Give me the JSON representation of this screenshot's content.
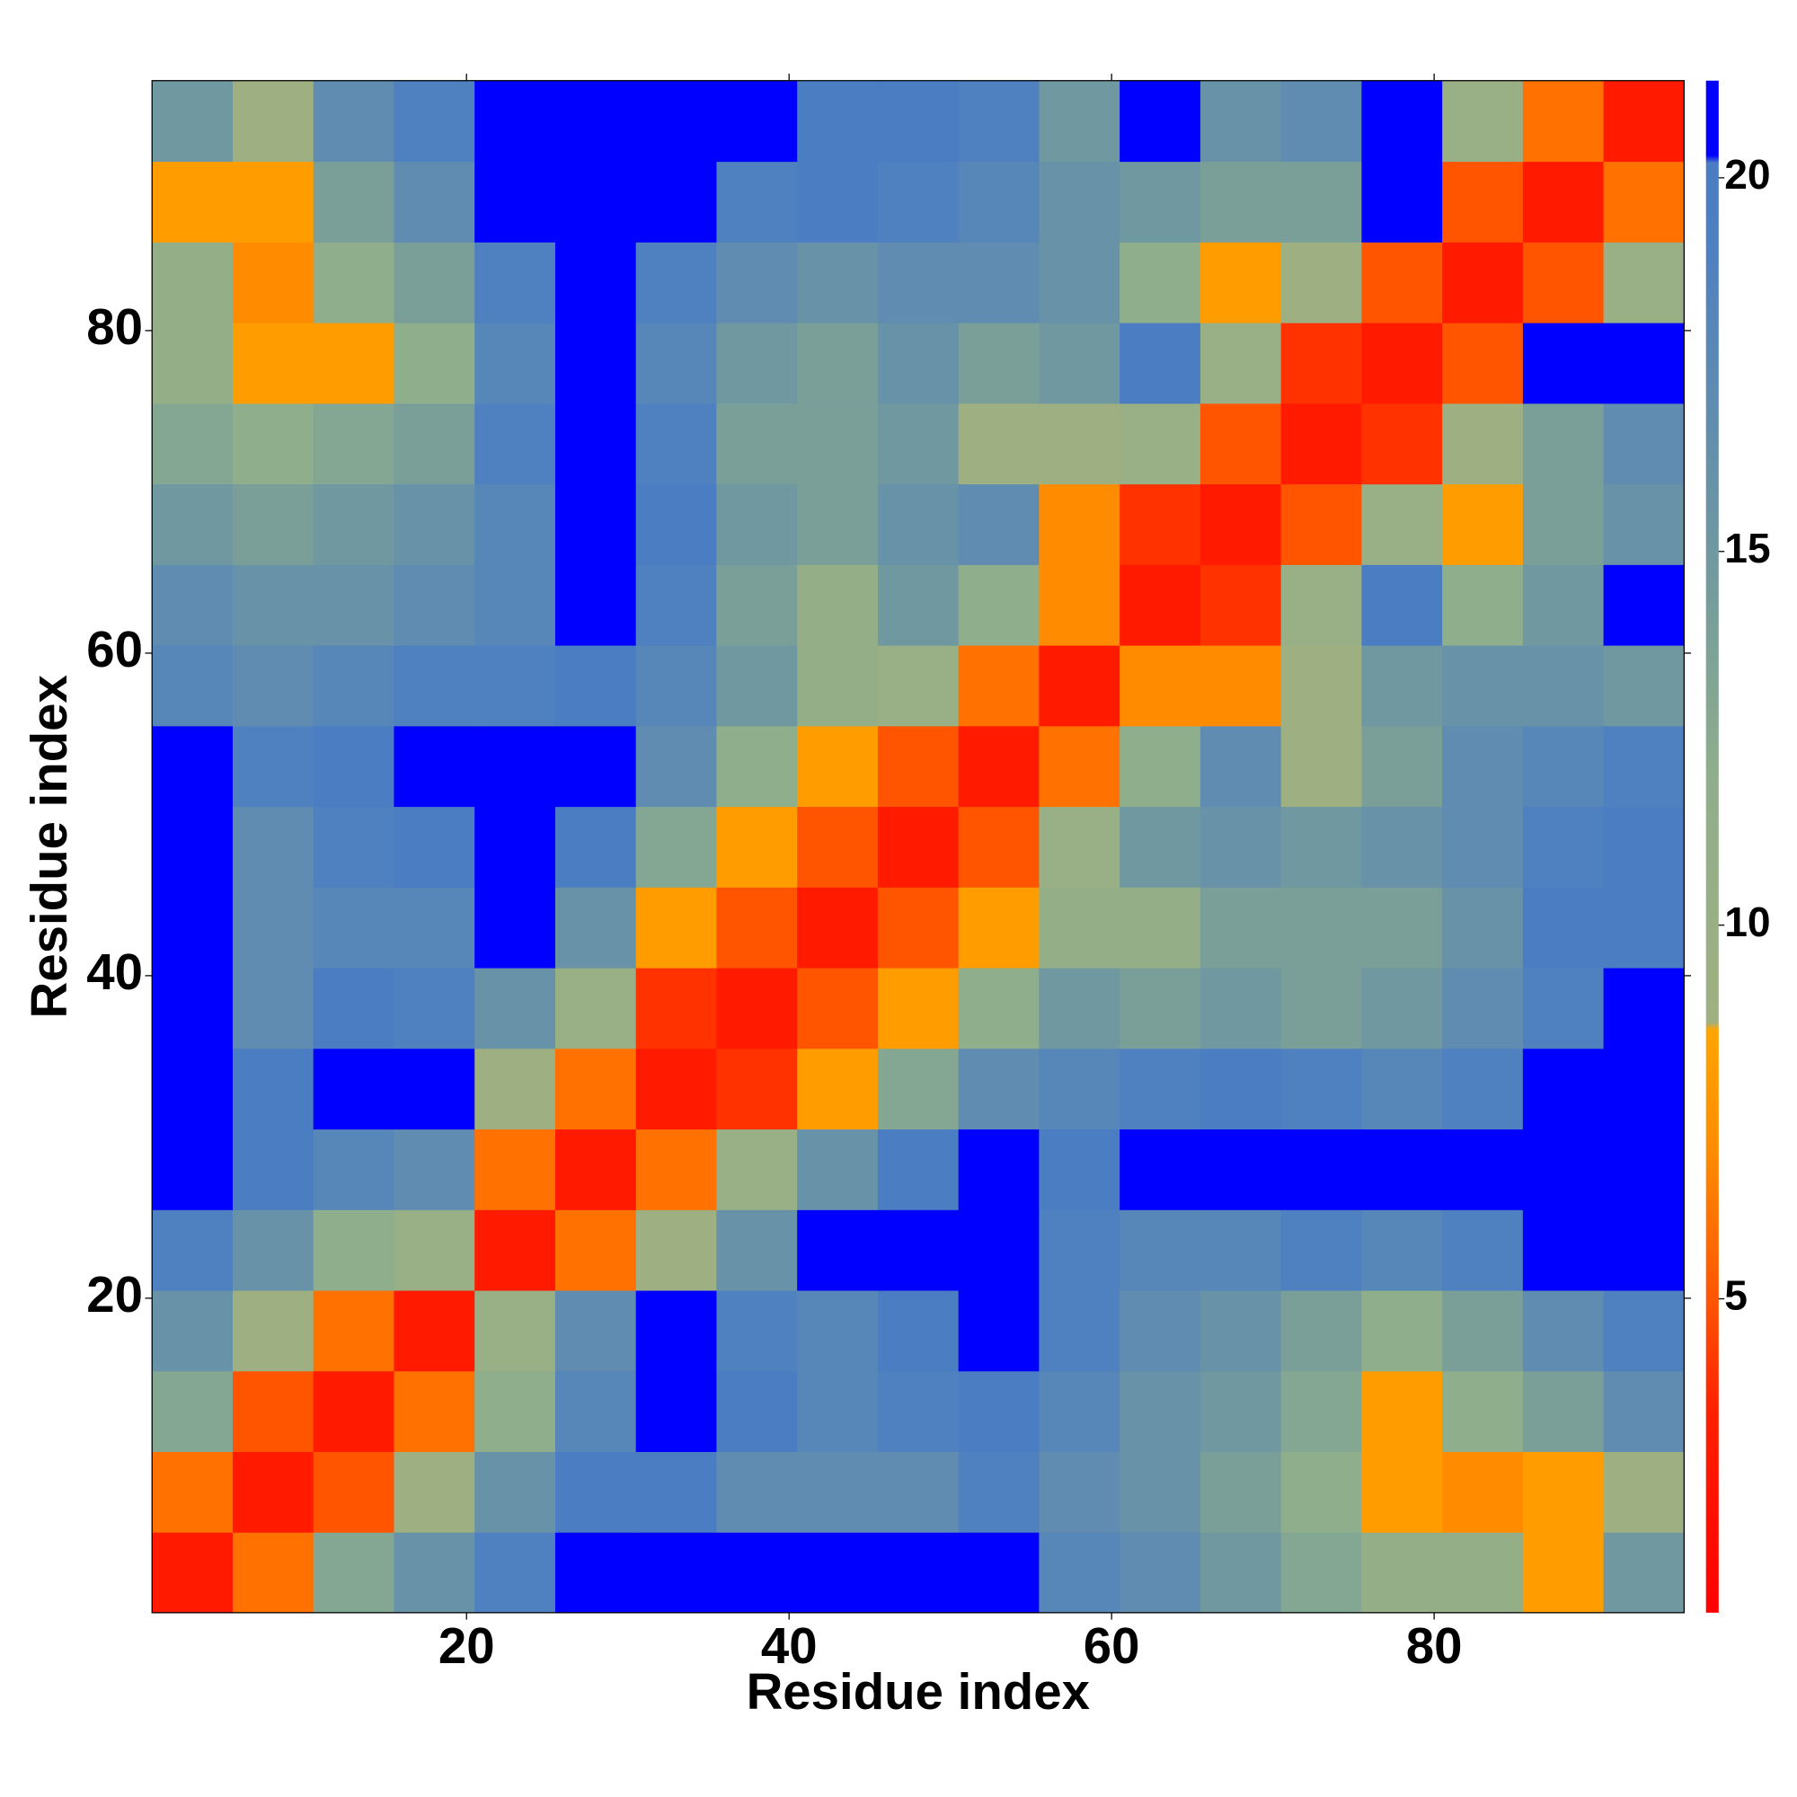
{
  "chart_data": {
    "type": "heatmap",
    "xlabel": "Residue index",
    "ylabel": "Residue index",
    "xbins": [
      0.5,
      5.5,
      10.5,
      15.5,
      20.5,
      25.5,
      30.5,
      35.5,
      40.5,
      45.5,
      50.5,
      55.5,
      60.5,
      65.5,
      70.5,
      75.5,
      80.5,
      85.5,
      90.5,
      95.5
    ],
    "ybins": [
      0.5,
      5.5,
      10.5,
      15.5,
      20.5,
      25.5,
      30.5,
      35.5,
      40.5,
      45.5,
      50.5,
      55.5,
      60.5,
      65.5,
      70.5,
      75.5,
      80.5,
      85.5,
      90.5,
      95.5
    ],
    "values": [
      [
        3,
        6,
        13,
        16,
        19,
        21,
        21,
        21,
        21,
        21,
        21,
        18,
        17,
        15,
        13,
        11,
        11,
        8,
        15
      ],
      [
        6,
        3,
        5,
        9,
        16,
        20,
        20,
        17,
        17,
        17,
        19,
        17,
        16,
        14,
        12,
        8,
        7,
        8,
        9
      ],
      [
        13,
        5,
        3,
        6,
        12,
        18,
        21,
        20,
        18,
        19,
        20,
        18,
        16,
        15,
        13,
        8,
        12,
        14,
        17
      ],
      [
        16,
        9,
        6,
        3,
        10,
        17,
        21,
        19,
        18,
        20,
        21,
        19,
        17,
        16,
        14,
        12,
        14,
        17,
        19
      ],
      [
        19,
        16,
        12,
        10,
        3,
        6,
        9,
        16,
        21,
        21,
        21,
        19,
        18,
        18,
        19,
        18,
        19,
        21,
        21
      ],
      [
        21,
        20,
        18,
        17,
        6,
        3,
        6,
        10,
        16,
        20,
        21,
        20,
        21,
        21,
        21,
        21,
        21,
        21,
        21
      ],
      [
        21,
        20,
        21,
        21,
        9,
        6,
        3,
        4,
        8,
        13,
        17,
        18,
        19,
        20,
        19,
        18,
        19,
        21,
        21
      ],
      [
        21,
        17,
        20,
        19,
        16,
        10,
        4,
        3,
        5,
        8,
        12,
        15,
        14,
        15,
        14,
        15,
        17,
        19,
        21
      ],
      [
        21,
        17,
        18,
        18,
        21,
        16,
        8,
        5,
        3,
        5,
        8,
        11,
        11,
        14,
        14,
        14,
        16,
        20,
        20
      ],
      [
        21,
        17,
        19,
        20,
        21,
        20,
        13,
        8,
        5,
        3,
        5,
        10,
        15,
        16,
        15,
        16,
        17,
        19,
        20
      ],
      [
        21,
        19,
        20,
        21,
        21,
        21,
        17,
        12,
        8,
        5,
        3,
        6,
        12,
        17,
        9,
        14,
        17,
        18,
        19
      ],
      [
        18,
        17,
        18,
        19,
        19,
        20,
        18,
        15,
        11,
        10,
        6,
        3,
        7,
        7,
        9,
        15,
        16,
        16,
        15
      ],
      [
        17,
        16,
        16,
        17,
        18,
        21,
        19,
        14,
        11,
        15,
        12,
        7,
        3,
        4,
        10,
        20,
        12,
        15,
        21
      ],
      [
        15,
        14,
        15,
        16,
        18,
        21,
        20,
        15,
        14,
        16,
        17,
        7,
        4,
        3,
        5,
        10,
        8,
        14,
        16
      ],
      [
        13,
        12,
        13,
        14,
        19,
        21,
        19,
        14,
        14,
        15,
        9,
        9,
        10,
        5,
        3,
        4,
        9,
        14,
        17
      ],
      [
        11,
        8,
        8,
        12,
        18,
        21,
        18,
        15,
        14,
        16,
        14,
        15,
        20,
        10,
        4,
        3,
        5,
        21,
        21
      ],
      [
        11,
        7,
        12,
        14,
        19,
        21,
        19,
        17,
        16,
        17,
        17,
        16,
        12,
        8,
        9,
        5,
        3,
        5,
        10
      ],
      [
        8,
        8,
        14,
        17,
        21,
        21,
        21,
        19,
        20,
        19,
        18,
        16,
        15,
        14,
        14,
        21,
        5,
        3,
        6
      ],
      [
        15,
        9,
        17,
        19,
        21,
        21,
        21,
        21,
        20,
        20,
        19,
        15,
        21,
        16,
        17,
        21,
        10,
        6,
        3
      ]
    ],
    "xlim": [
      0.5,
      95.5
    ],
    "ylim": [
      0.5,
      95.5
    ],
    "xticks": [
      20,
      40,
      60,
      80
    ],
    "yticks": [
      20,
      40,
      60,
      80
    ],
    "clim": [
      0.8,
      21.3
    ],
    "cticks": [
      5,
      10,
      15,
      20
    ],
    "colormap": [
      {
        "value": 0.8,
        "color": "#ff0000"
      },
      {
        "value": 3.5,
        "color": "#ff2000"
      },
      {
        "value": 5,
        "color": "#ff5500"
      },
      {
        "value": 7,
        "color": "#ff8c00"
      },
      {
        "value": 8.6,
        "color": "#ffa500"
      },
      {
        "value": 8.7,
        "color": "#a0b080"
      },
      {
        "value": 12,
        "color": "#8fae8c"
      },
      {
        "value": 15,
        "color": "#6f98a0"
      },
      {
        "value": 19,
        "color": "#4f80c0"
      },
      {
        "value": 20.2,
        "color": "#4a7cc4"
      },
      {
        "value": 20.3,
        "color": "#0000ff"
      },
      {
        "value": 21.3,
        "color": "#0000ff"
      }
    ]
  }
}
